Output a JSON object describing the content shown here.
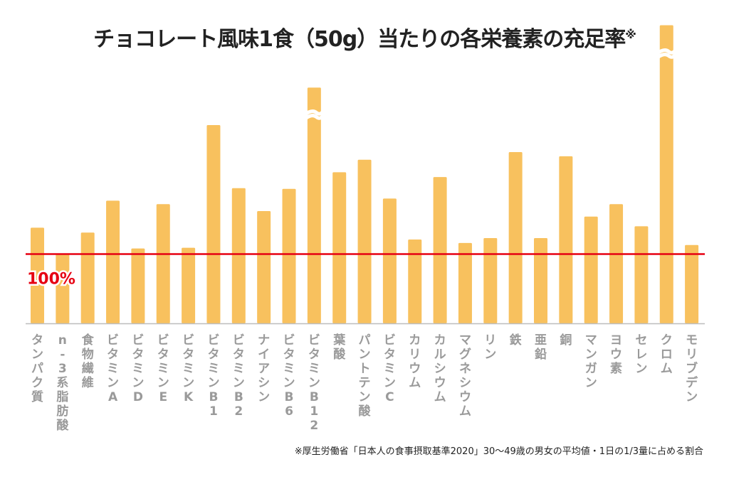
{
  "title": "チョコレート風味1食（50g）当たりの各栄養素の充足率",
  "title_mark": "※",
  "footnote": "※厚生労働省「日本人の食事摂取基準2020」30〜49歳の男女の平均値・1日の1/3量に占める割合",
  "colors": {
    "bar": "#f8c15e",
    "reference": "#e60012",
    "axis": "#bdbdbd",
    "label": "#9a9a9a"
  },
  "chart_data": {
    "type": "bar",
    "categories": [
      "タンパク質",
      "n-3系脂肪酸",
      "食物繊維",
      "ビタミンA",
      "ビタミンD",
      "ビタミンE",
      "ビタミンK",
      "ビタミンB1",
      "ビタミンB2",
      "ナイアシン",
      "ビタミンB6",
      "ビタミンB12",
      "葉酸",
      "パントテン酸",
      "ビタミンC",
      "カリウム",
      "カルシウム",
      "マグネシウム",
      "リン",
      "鉄",
      "亜鉛",
      "銅",
      "マンガン",
      "ヨウ素",
      "セレン",
      "クロム",
      "モリブデン"
    ],
    "values": [
      138,
      100,
      131,
      177,
      108,
      172,
      109,
      286,
      195,
      162,
      194,
      340,
      218,
      236,
      180,
      121,
      211,
      116,
      123,
      247,
      123,
      241,
      154,
      172,
      140,
      430,
      113
    ],
    "broken_axis_bars": [
      "ビタミンB12",
      "クロム"
    ],
    "reference_line": {
      "value": 100,
      "label": "100%"
    },
    "ylim": [
      0,
      430
    ]
  }
}
